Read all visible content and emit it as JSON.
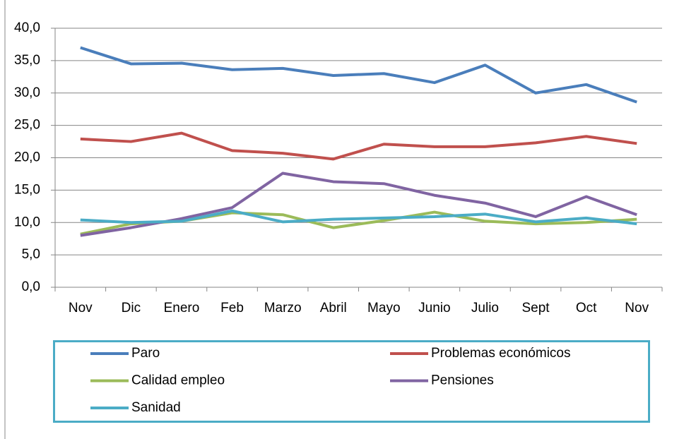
{
  "chart_data": {
    "type": "line",
    "categories": [
      "Nov",
      "Dic",
      "Enero",
      "Feb",
      "Marzo",
      "Abril",
      "Mayo",
      "Junio",
      "Julio",
      "Sept",
      "Oct",
      "Nov"
    ],
    "series": [
      {
        "name": "Paro",
        "color": "#4a7ebb",
        "values": [
          37.0,
          34.5,
          34.6,
          33.6,
          33.8,
          32.7,
          33.0,
          31.6,
          34.3,
          30.0,
          31.3,
          28.6
        ]
      },
      {
        "name": "Problemas económicos",
        "color": "#c0504d",
        "values": [
          22.9,
          22.5,
          23.8,
          21.1,
          20.7,
          19.8,
          22.1,
          21.7,
          21.7,
          22.3,
          23.3,
          22.2
        ]
      },
      {
        "name": "Calidad empleo",
        "color": "#9bbb59",
        "values": [
          8.2,
          9.8,
          10.2,
          11.5,
          11.2,
          9.2,
          10.3,
          11.6,
          10.2,
          9.8,
          10.0,
          10.5
        ]
      },
      {
        "name": "Pensiones",
        "color": "#8064a2",
        "values": [
          8.0,
          9.2,
          10.6,
          12.3,
          17.6,
          16.3,
          16.0,
          14.2,
          13.0,
          10.9,
          14.0,
          11.2
        ]
      },
      {
        "name": "Sanidad",
        "color": "#4bacc6",
        "values": [
          10.4,
          10.0,
          10.2,
          11.8,
          10.1,
          10.5,
          10.7,
          10.9,
          11.3,
          10.1,
          10.7,
          9.8
        ]
      }
    ],
    "ylim": [
      0,
      40
    ],
    "yticks": [
      {
        "value": 0,
        "label": "0,0"
      },
      {
        "value": 5,
        "label": "5,0"
      },
      {
        "value": 10,
        "label": "10,0"
      },
      {
        "value": 15,
        "label": "15,0"
      },
      {
        "value": 20,
        "label": "20,0"
      },
      {
        "value": 25,
        "label": "25,0"
      },
      {
        "value": 30,
        "label": "30,0"
      },
      {
        "value": 35,
        "label": "35,0"
      },
      {
        "value": 40,
        "label": "40,0"
      }
    ],
    "grid": true
  }
}
